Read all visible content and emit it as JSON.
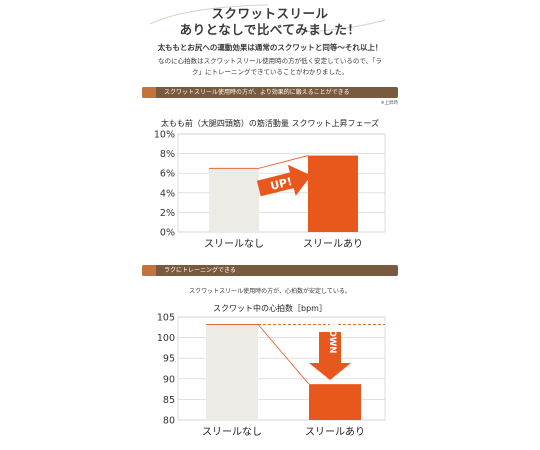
{
  "header": {
    "line1": "スクワットスリール",
    "line2": "ありとなしで比べてみました！"
  },
  "intro": {
    "bold": "太ももとお尻への運動効果は通常のスクワットと同等〜それ以上！",
    "line2": "なのに心拍数はスクワットスリール使用時の方が低く安定しているので、「ラ",
    "line3": "ク」にトレーニングできていることがわかりました。"
  },
  "section1": {
    "banner": "スクワットスリール使用時の方が、より効果的に鍛えることができる",
    "note": "※上昇時"
  },
  "section2": {
    "banner": "ラクにトレーニングできる",
    "subtitle": "スクワットスリール使用時の方が、心拍数が安定している。"
  },
  "chart_data": [
    {
      "type": "bar",
      "title": "太もも前（大腿四頭筋）の筋活動量 スクワット上昇フェーズ",
      "categories": [
        "スリールなし",
        "スリールあり"
      ],
      "values": [
        6.5,
        7.8
      ],
      "yticks": [
        "10%",
        "8%",
        "6%",
        "4%",
        "2%",
        "0%"
      ],
      "ylim": [
        0,
        10
      ],
      "annotation": "UP!",
      "colors": [
        "#ecebe5",
        "#e8581c"
      ],
      "grid": true
    },
    {
      "type": "bar",
      "title": "スクワット中の心拍数［bpm］",
      "categories": [
        "スリールなし",
        "スリールあり"
      ],
      "values": [
        103.2,
        88.7
      ],
      "yticks": [
        "105",
        "100",
        "95",
        "90",
        "85",
        "80"
      ],
      "ylim": [
        80,
        105
      ],
      "annotation": "DOWN",
      "colors": [
        "#ecebe5",
        "#e8581c"
      ],
      "grid": true
    }
  ]
}
